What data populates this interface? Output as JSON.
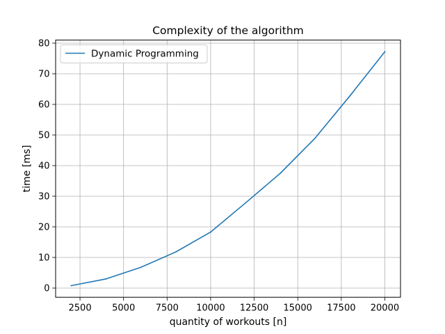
{
  "chart_data": {
    "type": "line",
    "title": "Complexity of the algorithm",
    "xlabel": "quantity of workouts [n]",
    "ylabel": "time [ms]",
    "x": [
      2000,
      4000,
      6000,
      8000,
      10000,
      12000,
      14000,
      16000,
      18000,
      20000
    ],
    "series": [
      {
        "name": "Dynamic Programming",
        "color": "#1f77b4",
        "values": [
          0.8,
          3.0,
          6.8,
          11.8,
          18.3,
          27.8,
          37.5,
          49.0,
          62.8,
          77.2
        ]
      }
    ],
    "xlim": [
      1100,
      20900
    ],
    "ylim": [
      -3.0,
      81.0
    ],
    "xticks": [
      2500,
      5000,
      7500,
      10000,
      12500,
      15000,
      17500,
      20000
    ],
    "xtick_labels": [
      "2500",
      "5000",
      "7500",
      "10000",
      "12500",
      "15000",
      "17500",
      "20000"
    ],
    "yticks": [
      0,
      10,
      20,
      30,
      40,
      50,
      60,
      70,
      80
    ],
    "ytick_labels": [
      "0",
      "10",
      "20",
      "30",
      "40",
      "50",
      "60",
      "70",
      "80"
    ],
    "grid": true,
    "legend_position": "upper-left"
  }
}
